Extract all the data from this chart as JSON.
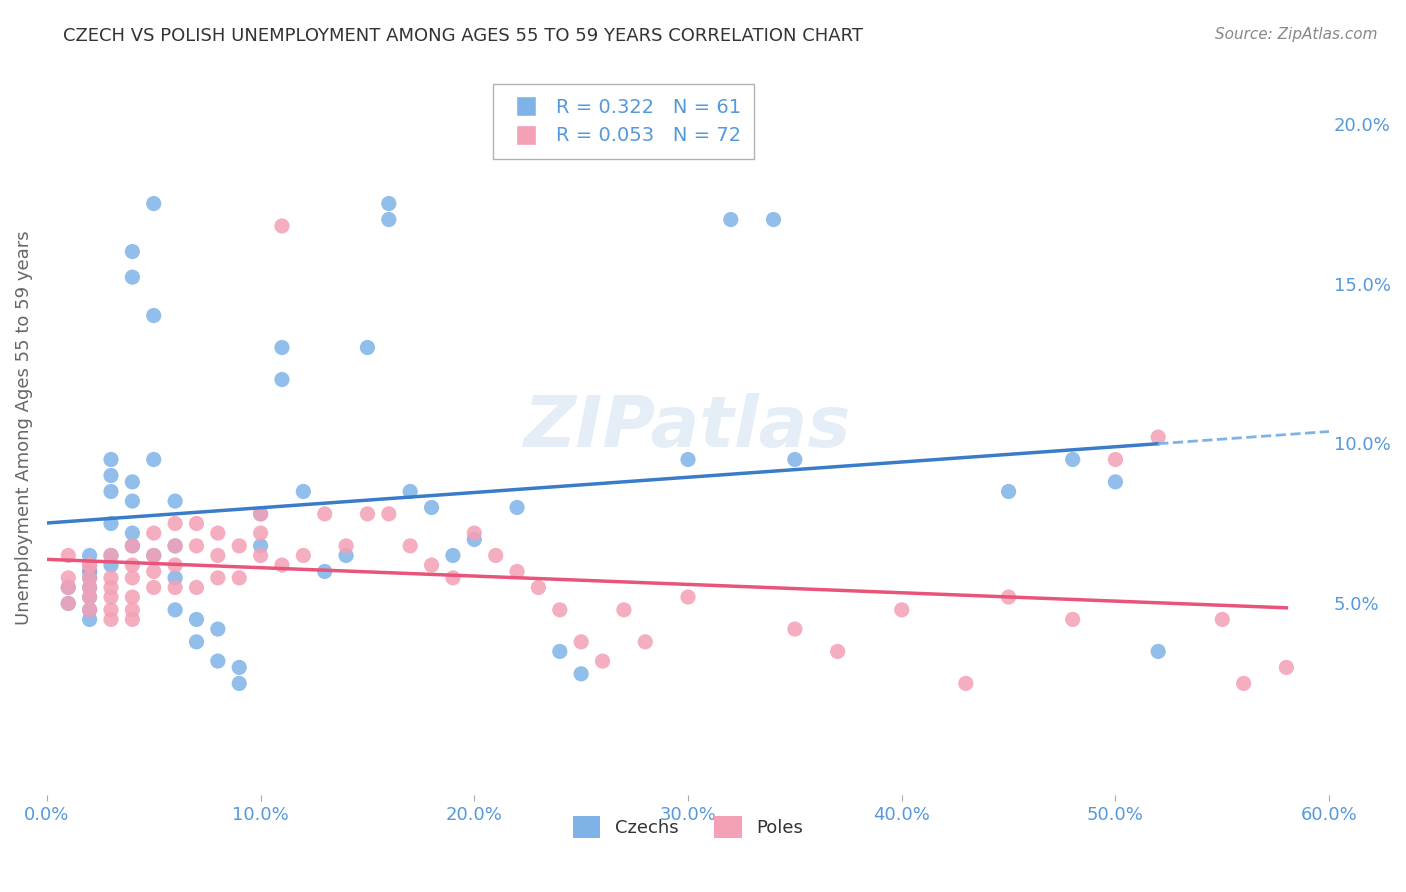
{
  "title": "CZECH VS POLISH UNEMPLOYMENT AMONG AGES 55 TO 59 YEARS CORRELATION CHART",
  "source": "Source: ZipAtlas.com",
  "ylabel": "Unemployment Among Ages 55 to 59 years",
  "xlim": [
    0.0,
    0.6
  ],
  "ylim": [
    -0.01,
    0.22
  ],
  "yticks": [
    0.05,
    0.1,
    0.15,
    0.2
  ],
  "ytick_labels": [
    "5.0%",
    "10.0%",
    "15.0%",
    "20.0%"
  ],
  "xticks": [
    0.0,
    0.1,
    0.2,
    0.3,
    0.4,
    0.5,
    0.6
  ],
  "xtick_labels": [
    "0.0%",
    "10.0%",
    "20.0%",
    "30.0%",
    "40.0%",
    "50.0%",
    "60.0%"
  ],
  "czech_color": "#7fb3e8",
  "pole_color": "#f4a0b5",
  "czech_line_color": "#3a7cc7",
  "pole_line_color": "#e8547a",
  "czech_R": 0.322,
  "czech_N": 61,
  "pole_R": 0.053,
  "pole_N": 72,
  "background_color": "#ffffff",
  "grid_color": "#cccccc",
  "axis_label_color": "#5599dd",
  "watermark": "ZIPatlas",
  "czechs_x": [
    0.01,
    0.01,
    0.02,
    0.02,
    0.02,
    0.02,
    0.02,
    0.02,
    0.02,
    0.02,
    0.03,
    0.03,
    0.03,
    0.03,
    0.03,
    0.03,
    0.04,
    0.04,
    0.04,
    0.04,
    0.04,
    0.04,
    0.05,
    0.05,
    0.05,
    0.05,
    0.06,
    0.06,
    0.06,
    0.06,
    0.07,
    0.07,
    0.08,
    0.08,
    0.09,
    0.09,
    0.1,
    0.1,
    0.11,
    0.11,
    0.12,
    0.13,
    0.14,
    0.15,
    0.16,
    0.16,
    0.17,
    0.18,
    0.19,
    0.2,
    0.22,
    0.24,
    0.25,
    0.3,
    0.32,
    0.34,
    0.35,
    0.45,
    0.48,
    0.5,
    0.52
  ],
  "czechs_y": [
    0.055,
    0.05,
    0.06,
    0.065,
    0.06,
    0.055,
    0.048,
    0.052,
    0.045,
    0.058,
    0.09,
    0.095,
    0.085,
    0.075,
    0.065,
    0.062,
    0.088,
    0.082,
    0.072,
    0.068,
    0.152,
    0.16,
    0.175,
    0.14,
    0.095,
    0.065,
    0.082,
    0.068,
    0.058,
    0.048,
    0.045,
    0.038,
    0.042,
    0.032,
    0.03,
    0.025,
    0.078,
    0.068,
    0.13,
    0.12,
    0.085,
    0.06,
    0.065,
    0.13,
    0.175,
    0.17,
    0.085,
    0.08,
    0.065,
    0.07,
    0.08,
    0.035,
    0.028,
    0.095,
    0.17,
    0.17,
    0.095,
    0.085,
    0.095,
    0.088,
    0.035
  ],
  "poles_x": [
    0.01,
    0.01,
    0.01,
    0.01,
    0.02,
    0.02,
    0.02,
    0.02,
    0.02,
    0.02,
    0.03,
    0.03,
    0.03,
    0.03,
    0.03,
    0.03,
    0.04,
    0.04,
    0.04,
    0.04,
    0.04,
    0.04,
    0.05,
    0.05,
    0.05,
    0.05,
    0.06,
    0.06,
    0.06,
    0.06,
    0.07,
    0.07,
    0.07,
    0.08,
    0.08,
    0.08,
    0.09,
    0.09,
    0.1,
    0.1,
    0.1,
    0.11,
    0.11,
    0.12,
    0.13,
    0.14,
    0.15,
    0.16,
    0.17,
    0.18,
    0.19,
    0.2,
    0.21,
    0.22,
    0.23,
    0.24,
    0.25,
    0.26,
    0.27,
    0.28,
    0.3,
    0.35,
    0.37,
    0.4,
    0.43,
    0.45,
    0.48,
    0.5,
    0.52,
    0.55,
    0.56,
    0.58
  ],
  "poles_y": [
    0.065,
    0.058,
    0.055,
    0.05,
    0.062,
    0.058,
    0.052,
    0.048,
    0.055,
    0.062,
    0.065,
    0.058,
    0.055,
    0.052,
    0.048,
    0.045,
    0.068,
    0.062,
    0.058,
    0.052,
    0.048,
    0.045,
    0.072,
    0.065,
    0.06,
    0.055,
    0.075,
    0.068,
    0.062,
    0.055,
    0.075,
    0.068,
    0.055,
    0.072,
    0.065,
    0.058,
    0.068,
    0.058,
    0.078,
    0.072,
    0.065,
    0.168,
    0.062,
    0.065,
    0.078,
    0.068,
    0.078,
    0.078,
    0.068,
    0.062,
    0.058,
    0.072,
    0.065,
    0.06,
    0.055,
    0.048,
    0.038,
    0.032,
    0.048,
    0.038,
    0.052,
    0.042,
    0.035,
    0.048,
    0.025,
    0.052,
    0.045,
    0.095,
    0.102,
    0.045,
    0.025,
    0.03
  ]
}
